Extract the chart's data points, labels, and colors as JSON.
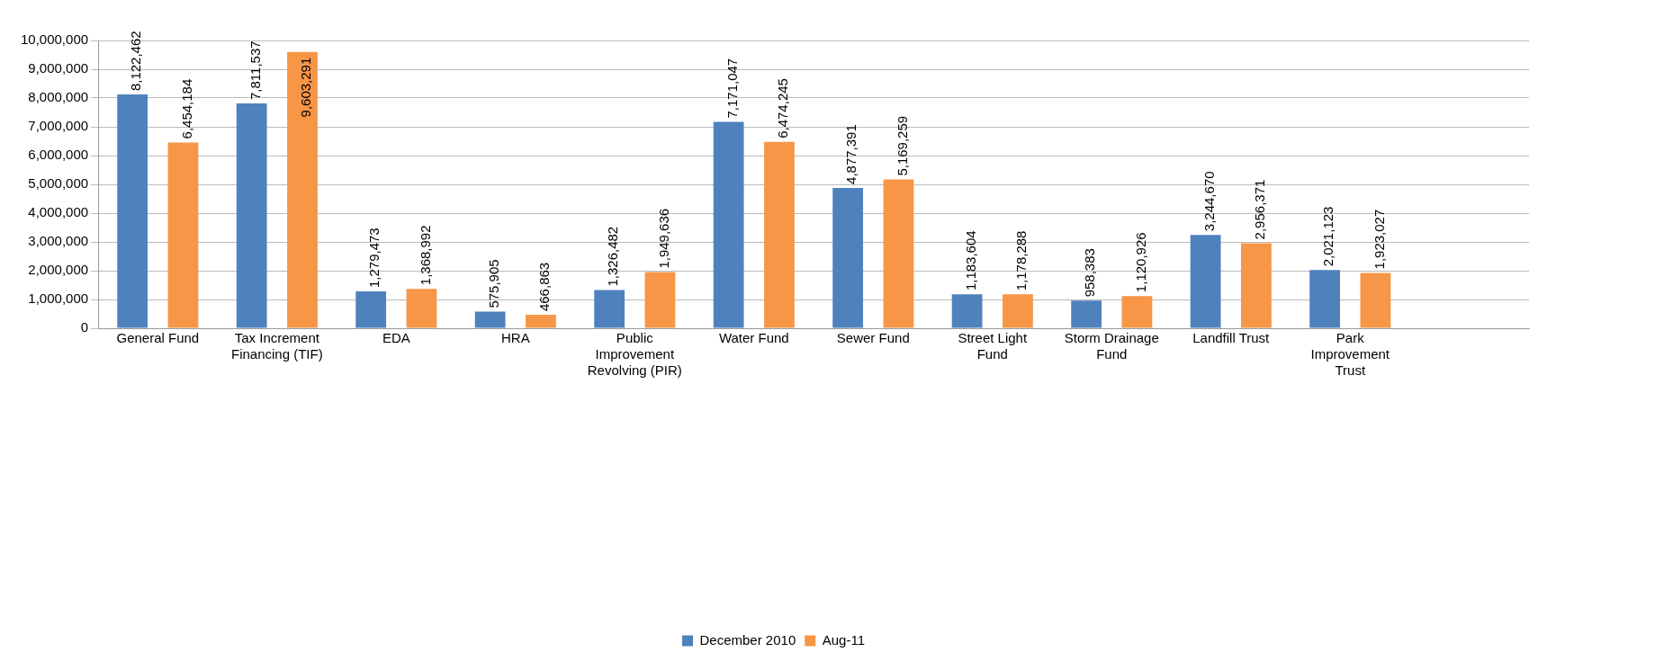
{
  "chart_data": {
    "type": "bar",
    "categories": [
      "General Fund",
      "Tax Increment Financing (TIF)",
      "EDA",
      "HRA",
      "Public Improvement Revolving (PIR)",
      "Water Fund",
      "Sewer Fund",
      "Street Light Fund",
      "Storm Drainage Fund",
      "Landfill Trust",
      "Park Improvement Trust",
      null
    ],
    "series": [
      {
        "name": "December 2010",
        "color": "#4f81bd",
        "values": [
          8122462,
          7811537,
          1279473,
          575905,
          1326482,
          7171047,
          4877391,
          1183604,
          958383,
          3244670,
          2021123,
          null
        ],
        "value_labels": [
          "8,122,462",
          "7,811,537",
          "1,279,473",
          "575,905",
          "1,326,482",
          "7,171,047",
          "4,877,391",
          "1,183,604",
          "958,383",
          "3,244,670",
          "2,021,123",
          null
        ]
      },
      {
        "name": "Aug-11",
        "color": "#f79646",
        "values": [
          6454184,
          9603291,
          1368992,
          466863,
          1949636,
          6474245,
          5169259,
          1178288,
          1120926,
          2956371,
          1923027,
          null
        ],
        "value_labels": [
          "6,454,184",
          "9,603,291",
          "1,368,992",
          "466,863",
          "1,949,636",
          "6,474,245",
          "5,169,259",
          "1,178,288",
          "1,120,926",
          "2,956,371",
          "1,923,027",
          null
        ]
      }
    ],
    "ylim": [
      0,
      10000000
    ],
    "yticks": [
      {
        "value": 0,
        "label": "0"
      },
      {
        "value": 1000000,
        "label": "1,000,000"
      },
      {
        "value": 2000000,
        "label": "2,000,000"
      },
      {
        "value": 3000000,
        "label": "3,000,000"
      },
      {
        "value": 4000000,
        "label": "4,000,000"
      },
      {
        "value": 5000000,
        "label": "5,000,000"
      },
      {
        "value": 6000000,
        "label": "6,000,000"
      },
      {
        "value": 7000000,
        "label": "7,000,000"
      },
      {
        "value": 8000000,
        "label": "8,000,000"
      },
      {
        "value": 9000000,
        "label": "9,000,000"
      },
      {
        "value": 10000000,
        "label": "10,000,000"
      }
    ],
    "grid": "y",
    "legend": "bottom"
  }
}
